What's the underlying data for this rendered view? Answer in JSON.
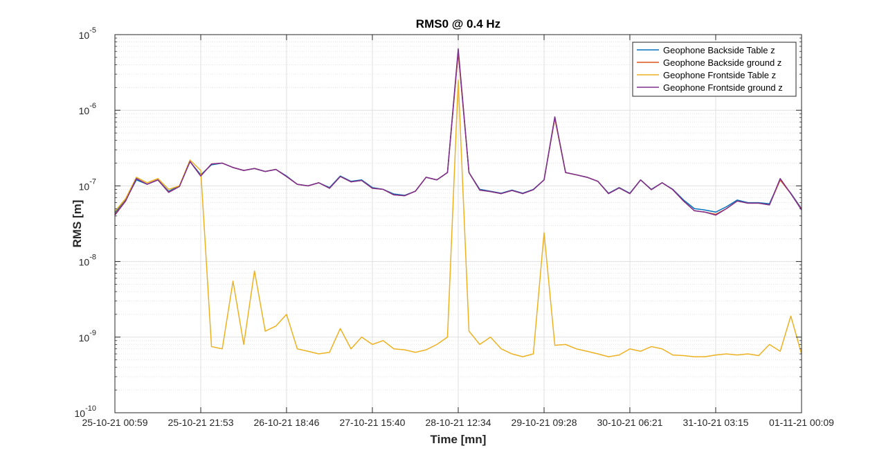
{
  "chart_data": {
    "type": "line",
    "title": "RMS0 @ 0.4 Hz",
    "xlabel": "Time [mn]",
    "ylabel": "RMS [m]",
    "yscale": "log",
    "ylim": [
      1e-10,
      1e-05
    ],
    "xlim": [
      "25-10-21 00:59",
      "01-11-21 00:09"
    ],
    "x_ticks": [
      "25-10-21 00:59",
      "25-10-21 21:53",
      "26-10-21 18:46",
      "27-10-21 15:40",
      "28-10-21 12:34",
      "29-10-21 09:28",
      "30-10-21 06:21",
      "31-10-21 03:15",
      "01-11-21 00:09"
    ],
    "y_ticks": [
      {
        "base": "10",
        "exp": "-10"
      },
      {
        "base": "10",
        "exp": "-9"
      },
      {
        "base": "10",
        "exp": "-8"
      },
      {
        "base": "10",
        "exp": "-7"
      },
      {
        "base": "10",
        "exp": "-6"
      },
      {
        "base": "10",
        "exp": "-5"
      }
    ],
    "grid": true,
    "legend_position": "top-right",
    "x": [
      "25-10-21 00:59",
      "25-10-21 03:36",
      "25-10-21 06:13",
      "25-10-21 08:50",
      "25-10-21 11:27",
      "25-10-21 14:04",
      "25-10-21 16:41",
      "25-10-21 19:16",
      "25-10-21 21:53",
      "26-10-21 00:30",
      "26-10-21 03:07",
      "26-10-21 05:44",
      "26-10-21 08:21",
      "26-10-21 10:58",
      "26-10-21 13:35",
      "26-10-21 16:10",
      "26-10-21 18:46",
      "26-10-21 21:23",
      "27-10-21 00:00",
      "27-10-21 02:37",
      "27-10-21 05:14",
      "27-10-21 07:51",
      "27-10-21 10:28",
      "27-10-21 13:03",
      "27-10-21 15:40",
      "27-10-21 18:17",
      "27-10-21 20:54",
      "27-10-21 23:31",
      "28-10-21 02:08",
      "28-10-21 04:45",
      "28-10-21 07:22",
      "28-10-21 09:57",
      "28-10-21 12:34",
      "28-10-21 15:11",
      "28-10-21 17:48",
      "28-10-21 20:25",
      "28-10-21 23:02",
      "29-10-21 01:39",
      "29-10-21 04:16",
      "29-10-21 06:51",
      "29-10-21 09:28",
      "29-10-21 12:05",
      "29-10-21 14:42",
      "29-10-21 17:19",
      "29-10-21 19:56",
      "29-10-21 22:33",
      "30-10-21 01:10",
      "30-10-21 03:45",
      "30-10-21 06:21",
      "30-10-21 08:58",
      "30-10-21 11:35",
      "30-10-21 14:12",
      "30-10-21 16:49",
      "30-10-21 19:26",
      "30-10-21 22:03",
      "31-10-21 00:38",
      "31-10-21 03:15",
      "31-10-21 05:52",
      "31-10-21 08:29",
      "31-10-21 11:06",
      "31-10-21 13:43",
      "31-10-21 16:20",
      "31-10-21 18:57",
      "31-10-21 21:32",
      "01-11-21 00:09"
    ],
    "series": [
      {
        "name": "Geophone Backside Table z",
        "color": "#0072BD",
        "values": [
          4.4e-08,
          6.5e-08,
          1.2e-07,
          1.05e-07,
          1.2e-07,
          8.5e-08,
          1e-07,
          2.1e-07,
          1.4e-07,
          1.9e-07,
          2e-07,
          1.75e-07,
          1.6e-07,
          1.7e-07,
          1.55e-07,
          1.65e-07,
          1.35e-07,
          1.05e-07,
          1e-07,
          1.1e-07,
          9.5e-08,
          1.35e-07,
          1.15e-07,
          1.2e-07,
          9.5e-08,
          9e-08,
          7.8e-08,
          7.5e-08,
          8.5e-08,
          1.3e-07,
          1.2e-07,
          1.5e-07,
          6e-06,
          1.5e-07,
          9e-08,
          8.5e-08,
          8e-08,
          8.8e-08,
          8e-08,
          9e-08,
          1.2e-07,
          8e-07,
          1.5e-07,
          1.4e-07,
          1.3e-07,
          1.15e-07,
          8e-08,
          9.5e-08,
          8e-08,
          1.2e-07,
          9e-08,
          1.1e-07,
          9e-08,
          6.5e-08,
          5e-08,
          4.8e-08,
          4.5e-08,
          5.3e-08,
          6.5e-08,
          6e-08,
          6e-08,
          5.8e-08,
          1.2e-07,
          8e-08,
          5e-08
        ]
      },
      {
        "name": "Geophone Backside ground z",
        "color": "#D95319",
        "values": [
          4.2e-08,
          6.4e-08,
          1.25e-07,
          1.05e-07,
          1.2e-07,
          8.3e-08,
          9.8e-08,
          2.1e-07,
          1.35e-07,
          1.95e-07,
          2e-07,
          1.75e-07,
          1.6e-07,
          1.7e-07,
          1.55e-07,
          1.65e-07,
          1.33e-07,
          1.05e-07,
          1e-07,
          1.1e-07,
          9.3e-08,
          1.33e-07,
          1.13e-07,
          1.18e-07,
          9.3e-08,
          9e-08,
          7.6e-08,
          7.4e-08,
          8.5e-08,
          1.3e-07,
          1.2e-07,
          1.5e-07,
          5.8e-06,
          1.5e-07,
          8.8e-08,
          8.4e-08,
          7.9e-08,
          8.7e-08,
          7.9e-08,
          8.9e-08,
          1.2e-07,
          7.8e-07,
          1.5e-07,
          1.4e-07,
          1.3e-07,
          1.15e-07,
          7.9e-08,
          9.4e-08,
          7.9e-08,
          1.2e-07,
          8.9e-08,
          1.1e-07,
          8.9e-08,
          6.3e-08,
          4.7e-08,
          4.5e-08,
          4.2e-08,
          5e-08,
          6.3e-08,
          5.9e-08,
          5.9e-08,
          5.6e-08,
          1.2e-07,
          7.9e-08,
          4.9e-08
        ]
      },
      {
        "name": "Geophone Frontside Table z",
        "color": "#EDB120",
        "values": [
          4.6e-08,
          6.8e-08,
          1.3e-07,
          1.1e-07,
          1.25e-07,
          9e-08,
          1e-07,
          2.2e-07,
          1.6e-07,
          7.5e-10,
          7e-10,
          5.5e-09,
          8e-10,
          7.5e-09,
          1.2e-09,
          1.4e-09,
          2e-09,
          7e-10,
          6.5e-10,
          6e-10,
          6.3e-10,
          1.3e-09,
          7e-10,
          1e-09,
          8e-10,
          9e-10,
          7e-10,
          6.8e-10,
          6.3e-10,
          6.8e-10,
          8e-10,
          1e-09,
          2.5e-06,
          1.2e-09,
          8e-10,
          1e-09,
          7e-10,
          6e-10,
          5.5e-10,
          6e-10,
          2.4e-08,
          7.8e-10,
          8e-10,
          7e-10,
          6.5e-10,
          6e-10,
          5.5e-10,
          5.8e-10,
          7e-10,
          6.5e-10,
          7.5e-10,
          7e-10,
          5.8e-10,
          5.7e-10,
          5.5e-10,
          5.5e-10,
          5.8e-10,
          6e-10,
          5.8e-10,
          6e-10,
          5.7e-10,
          8e-10,
          6.5e-10,
          1.9e-09,
          6e-10
        ]
      },
      {
        "name": "Geophone Frontside ground z",
        "color": "#7E2F8E",
        "values": [
          4.1e-08,
          6.3e-08,
          1.25e-07,
          1.05e-07,
          1.2e-07,
          8.2e-08,
          9.8e-08,
          2.1e-07,
          1.35e-07,
          1.95e-07,
          2e-07,
          1.75e-07,
          1.6e-07,
          1.7e-07,
          1.55e-07,
          1.65e-07,
          1.33e-07,
          1.05e-07,
          1e-07,
          1.1e-07,
          9.3e-08,
          1.33e-07,
          1.13e-07,
          1.18e-07,
          9.3e-08,
          9e-08,
          7.6e-08,
          7.4e-08,
          8.5e-08,
          1.3e-07,
          1.2e-07,
          1.5e-07,
          6.5e-06,
          1.5e-07,
          8.8e-08,
          8.4e-08,
          7.9e-08,
          8.7e-08,
          7.9e-08,
          8.9e-08,
          1.2e-07,
          8.2e-07,
          1.5e-07,
          1.4e-07,
          1.3e-07,
          1.15e-07,
          7.9e-08,
          9.4e-08,
          7.9e-08,
          1.2e-07,
          8.9e-08,
          1.1e-07,
          8.9e-08,
          6.3e-08,
          4.7e-08,
          4.5e-08,
          4.1e-08,
          5e-08,
          6.3e-08,
          5.9e-08,
          5.9e-08,
          5.6e-08,
          1.25e-07,
          7.9e-08,
          4.8e-08
        ]
      }
    ]
  }
}
